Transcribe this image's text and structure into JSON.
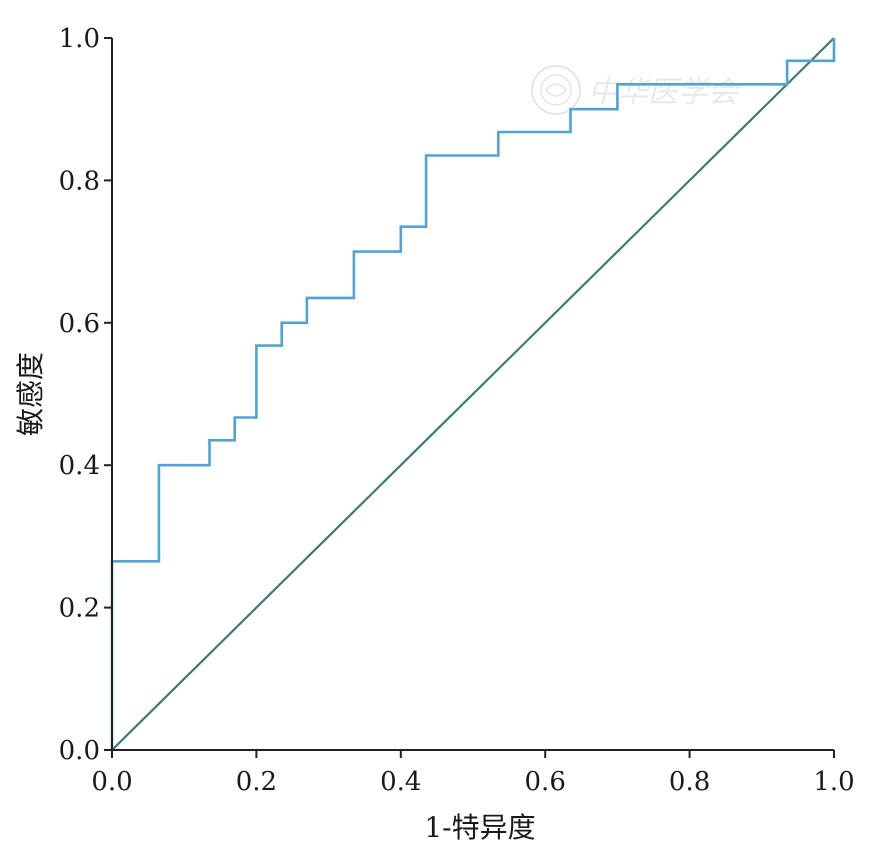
{
  "chart_data": {
    "type": "line",
    "title": "",
    "xlabel": "1-特异度",
    "ylabel": "敏感度",
    "xlim": [
      0,
      1
    ],
    "ylim": [
      0,
      1
    ],
    "x_ticks": [
      "0.0",
      "0.2",
      "0.4",
      "0.6",
      "0.8",
      "1.0"
    ],
    "y_ticks": [
      "0.0",
      "0.2",
      "0.4",
      "0.6",
      "0.8",
      "1.0"
    ],
    "grid": false,
    "legend": "none",
    "series": [
      {
        "style": "step",
        "color": "#4da3de",
        "x": [
          0,
          0,
          0.065,
          0.065,
          0.135,
          0.135,
          0.17,
          0.17,
          0.2,
          0.2,
          0.235,
          0.235,
          0.27,
          0.27,
          0.335,
          0.335,
          0.4,
          0.4,
          0.435,
          0.435,
          0.535,
          0.535,
          0.635,
          0.635,
          0.7,
          0.7,
          0.935,
          0.935,
          1.0,
          1.0
        ],
        "y": [
          0,
          0.265,
          0.265,
          0.4,
          0.4,
          0.435,
          0.435,
          0.467,
          0.467,
          0.568,
          0.568,
          0.6,
          0.6,
          0.635,
          0.635,
          0.7,
          0.7,
          0.735,
          0.735,
          0.835,
          0.835,
          0.868,
          0.868,
          0.9,
          0.9,
          0.935,
          0.935,
          0.968,
          0.968,
          1.0
        ]
      },
      {
        "style": "reference",
        "color": "#3e7a6e",
        "x": [
          0,
          1
        ],
        "y": [
          0,
          1
        ]
      }
    ],
    "watermark": "中华医学会",
    "watermark_icon": "society-seal-icon"
  }
}
